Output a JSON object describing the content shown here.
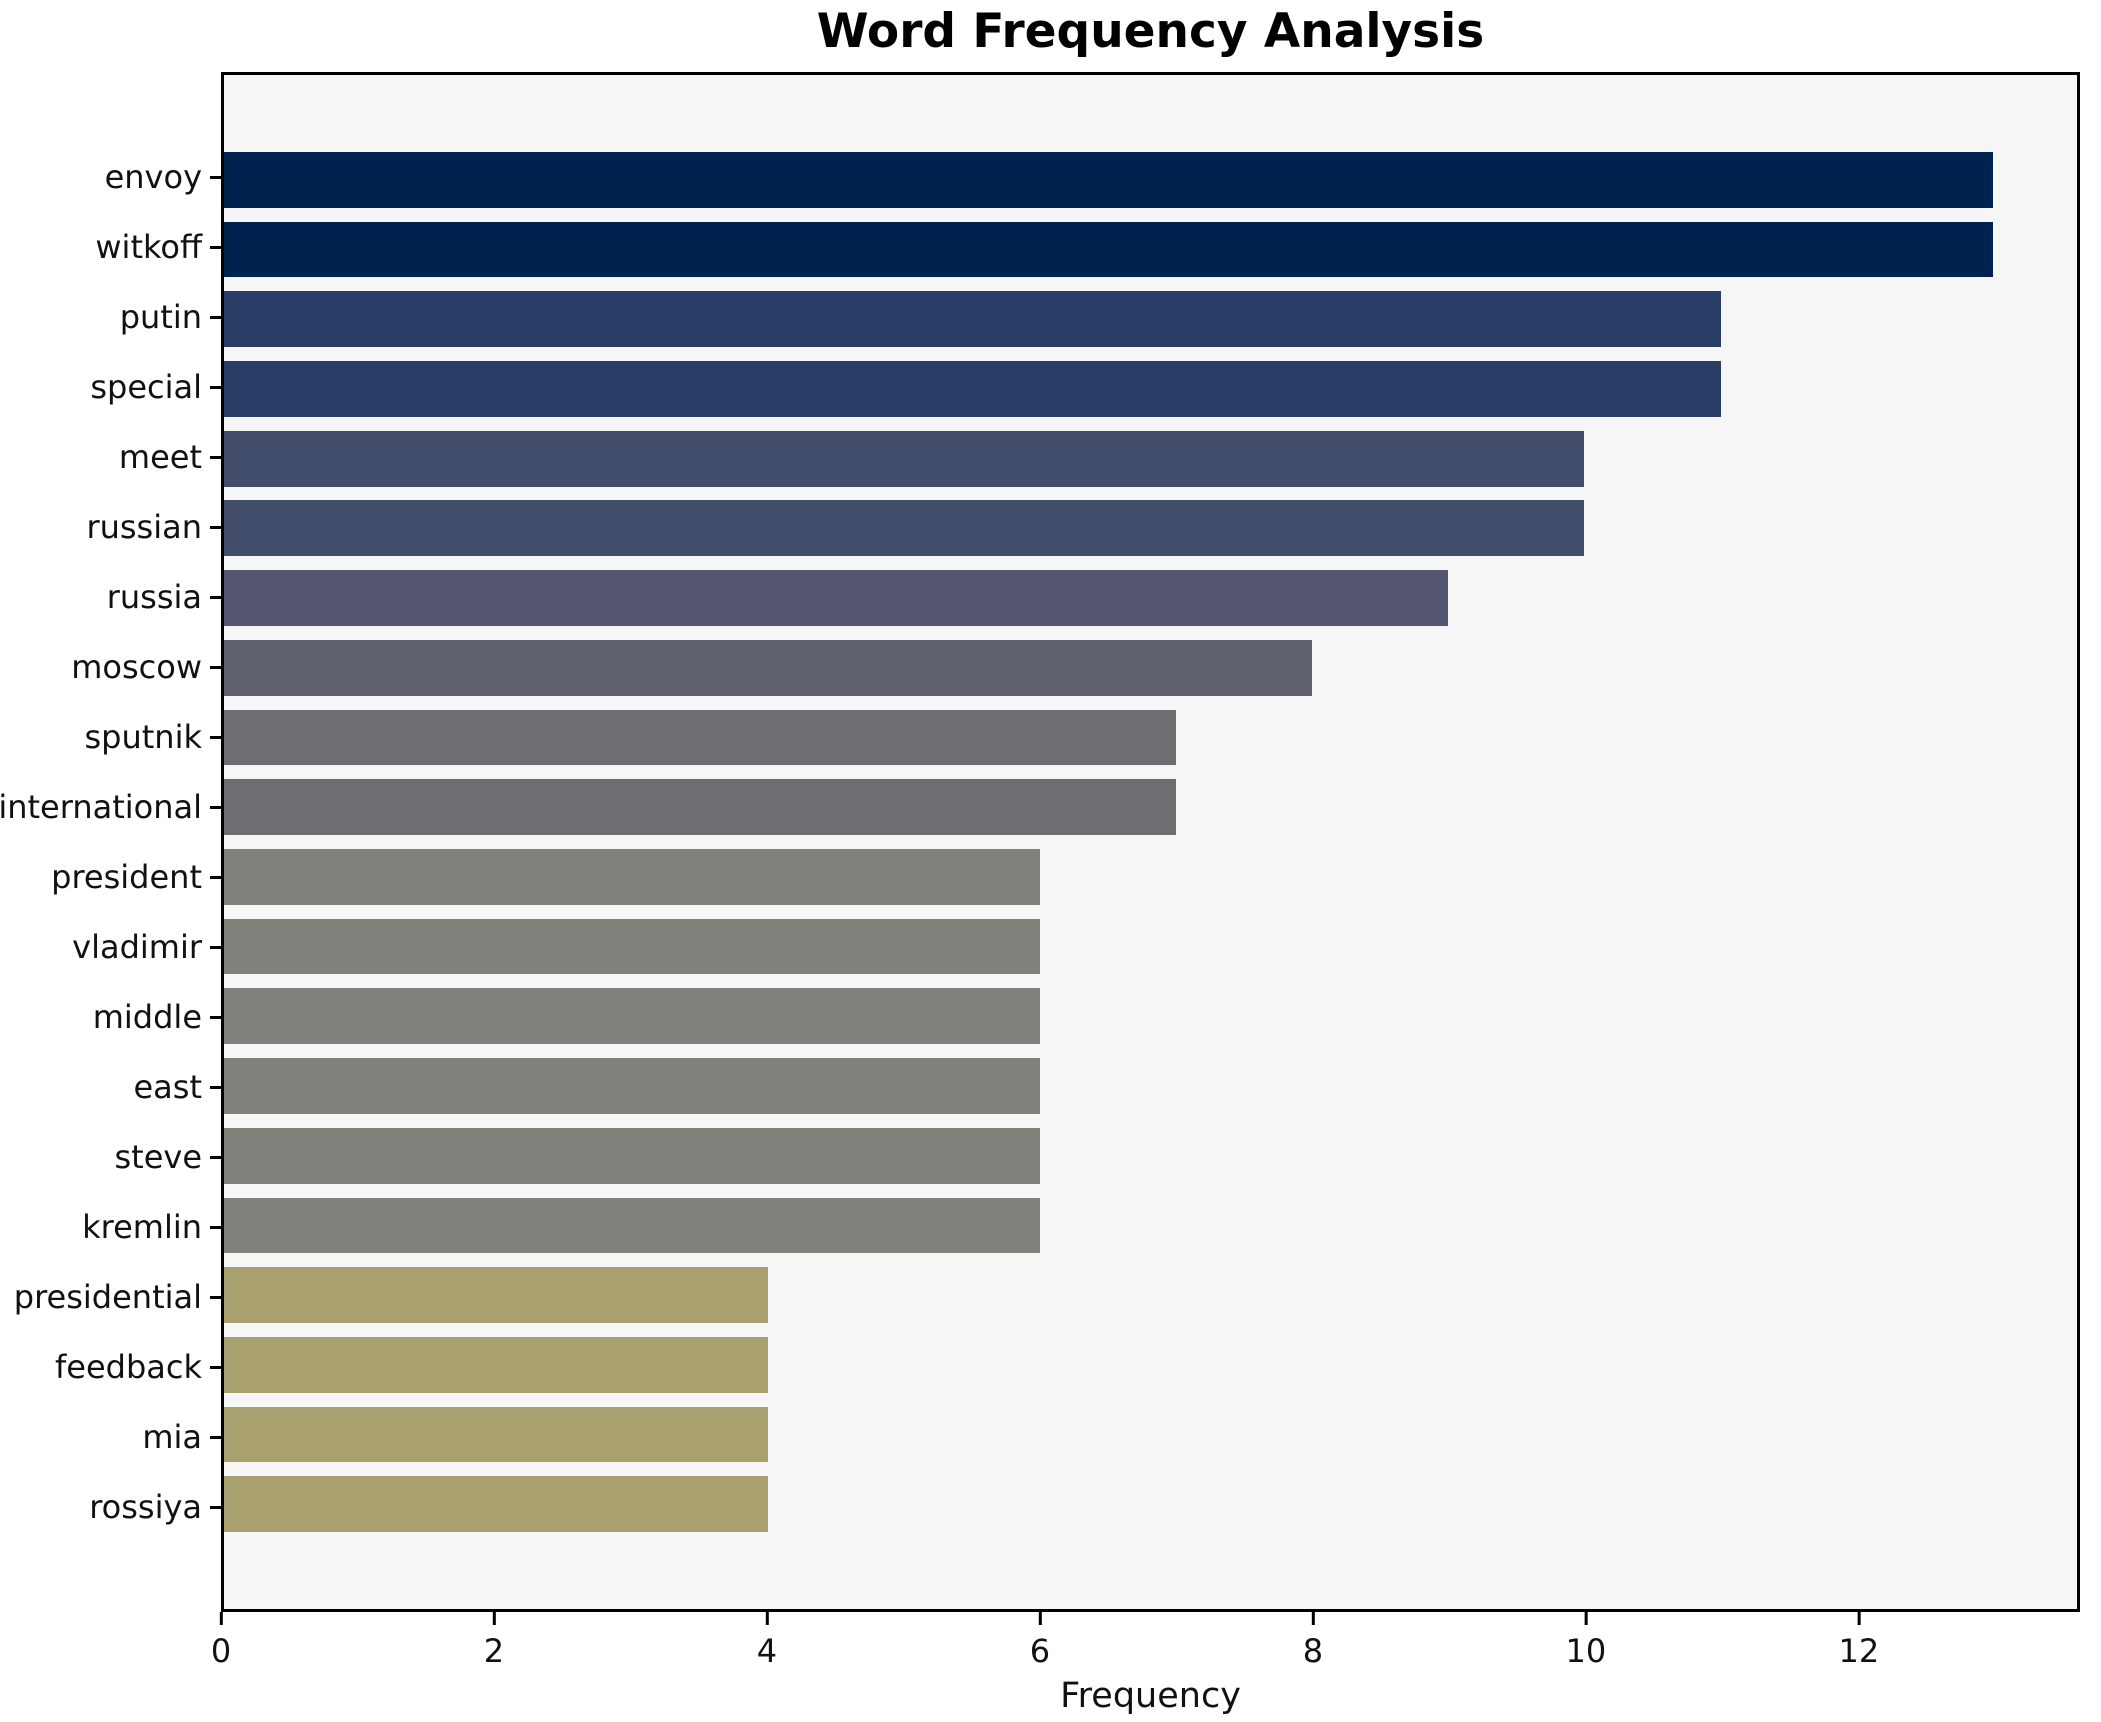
{
  "chart_data": {
    "type": "bar",
    "orientation": "horizontal",
    "title": "Word Frequency Analysis",
    "xlabel": "Frequency",
    "ylabel": "",
    "categories": [
      "envoy",
      "witkoff",
      "putin",
      "special",
      "meet",
      "russian",
      "russia",
      "moscow",
      "sputnik",
      "international",
      "president",
      "vladimir",
      "middle",
      "east",
      "steve",
      "kremlin",
      "presidential",
      "feedback",
      "mia",
      "rossiya"
    ],
    "values": [
      13,
      13,
      11,
      11,
      10,
      10,
      9,
      8,
      7,
      7,
      6,
      6,
      6,
      6,
      6,
      6,
      4,
      4,
      4,
      4
    ],
    "bar_colors": [
      "#00224e",
      "#00224e",
      "#293d67",
      "#293d67",
      "#434e6c",
      "#434e6c",
      "#53566e",
      "#60626f",
      "#6e6e72",
      "#6e6e72",
      "#82807a",
      "#82807a",
      "#82807a",
      "#82807a",
      "#82807a",
      "#82807a",
      "#a9a06f",
      "#a9a06f",
      "#a9a06f",
      "#a9a06f"
    ],
    "xlim": [
      0,
      13.62
    ],
    "xticks": [
      0,
      2,
      4,
      6,
      8,
      10,
      12
    ],
    "grid": false,
    "legend": null,
    "bar_height_fraction": 0.8,
    "colors": {
      "figure_bg": "#ffffff",
      "plot_bg": "#f6f6f7",
      "spine": "#000000",
      "text": "#111111",
      "title_text": "#000000"
    }
  }
}
